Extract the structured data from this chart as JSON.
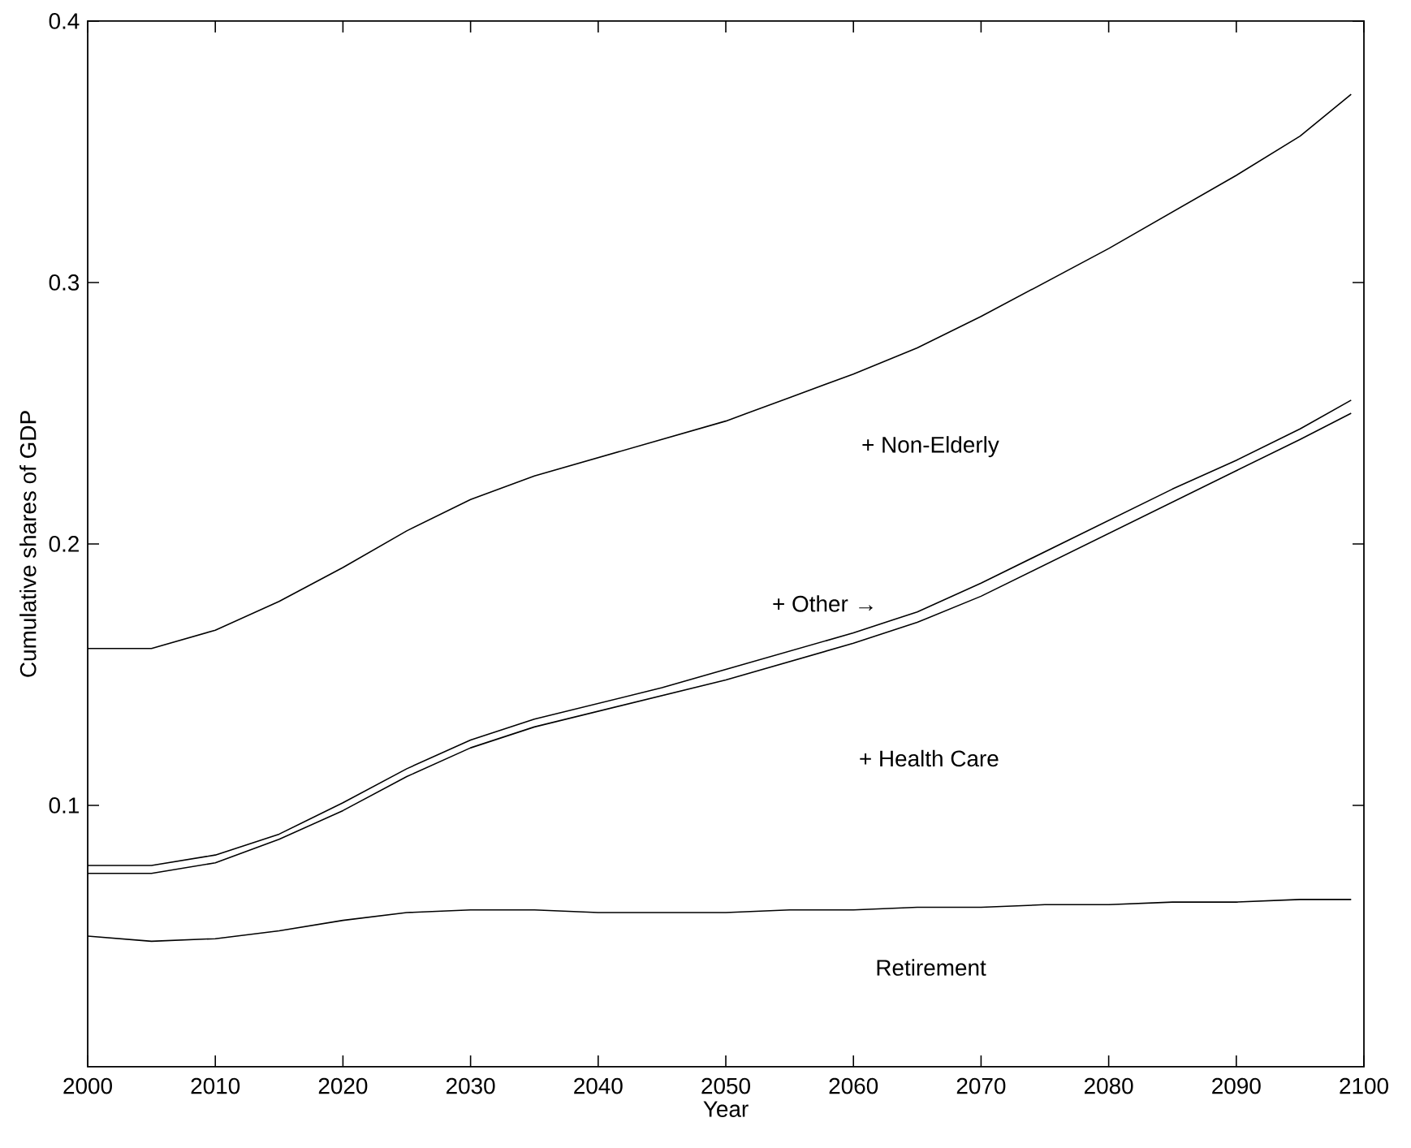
{
  "chart_data": {
    "type": "line",
    "xlabel": "Year",
    "ylabel": "Cumulative shares of GDP",
    "x": [
      2000,
      2005,
      2010,
      2015,
      2020,
      2025,
      2030,
      2035,
      2040,
      2045,
      2050,
      2055,
      2060,
      2065,
      2070,
      2075,
      2080,
      2085,
      2090,
      2095,
      2099
    ],
    "series": [
      {
        "color": "#000000",
        "values": [
          0.05,
          0.048,
          0.049,
          0.052,
          0.056,
          0.059,
          0.06,
          0.06,
          0.059,
          0.059,
          0.059,
          0.06,
          0.06,
          0.061,
          0.061,
          0.062,
          0.062,
          0.063,
          0.063,
          0.064,
          0.064
        ]
      },
      {
        "color": "#000000",
        "values": [
          0.074,
          0.074,
          0.078,
          0.087,
          0.098,
          0.111,
          0.122,
          0.13,
          0.136,
          0.142,
          0.148,
          0.155,
          0.162,
          0.17,
          0.18,
          0.192,
          0.204,
          0.216,
          0.228,
          0.24,
          0.25
        ]
      },
      {
        "color": "#000000",
        "values": [
          0.077,
          0.077,
          0.081,
          0.089,
          0.101,
          0.114,
          0.125,
          0.133,
          0.139,
          0.145,
          0.152,
          0.159,
          0.166,
          0.174,
          0.185,
          0.197,
          0.209,
          0.221,
          0.232,
          0.244,
          0.255
        ]
      },
      {
        "color": "#000000",
        "values": [
          0.16,
          0.16,
          0.167,
          0.178,
          0.191,
          0.205,
          0.217,
          0.226,
          0.233,
          0.24,
          0.247,
          0.256,
          0.265,
          0.275,
          0.287,
          0.3,
          0.313,
          0.327,
          0.341,
          0.356,
          0.372
        ]
      }
    ],
    "annotations": [
      "+ Non-Elderly",
      "+ Other →",
      "+ Health Care",
      "Retirement"
    ],
    "xlim": [
      2000,
      2100
    ],
    "ylim": [
      0,
      0.4
    ],
    "xticks": [
      2000,
      2010,
      2020,
      2030,
      2040,
      2050,
      2060,
      2070,
      2080,
      2090,
      2100
    ],
    "yticks": [
      0.1,
      0.2,
      0.3,
      0.4
    ],
    "grid": false,
    "marker": "none",
    "line_style": "solid"
  }
}
